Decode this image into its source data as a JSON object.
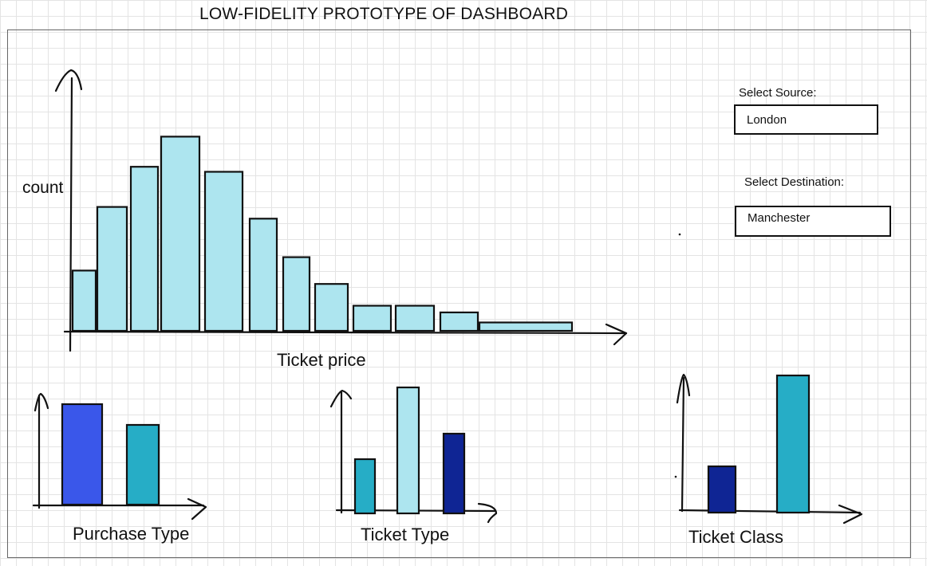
{
  "title": "LOW-FIDELITY PROTOTYPE OF DASHBOARD",
  "controls": {
    "source": {
      "label": "Select Source:",
      "value": "London"
    },
    "destination": {
      "label": "Select Destination:",
      "value": "Manchester"
    }
  },
  "colors": {
    "histogram_fill": "#ade5ef",
    "royal_blue": "#3a57ea",
    "teal": "#26adc6",
    "light_cyan": "#ade5ef",
    "navy": "#0f2594",
    "stroke": "#111111"
  },
  "chart_data": [
    {
      "type": "bar",
      "xlabel": "Ticket price",
      "ylabel": "count",
      "values": [
        3.6,
        7.4,
        9.8,
        11.6,
        9.5,
        6.7,
        4.4,
        2.8,
        1.5,
        1.5,
        1.1,
        0.5
      ]
    },
    {
      "type": "bar",
      "xlabel": "Purchase Type",
      "values": [
        6.3,
        5.0
      ],
      "colors": [
        "#3a57ea",
        "#26adc6"
      ]
    },
    {
      "type": "bar",
      "xlabel": "Ticket Type",
      "values": [
        3.4,
        7.9,
        5.0
      ],
      "colors": [
        "#26adc6",
        "#ade5ef",
        "#0f2594"
      ]
    },
    {
      "type": "bar",
      "xlabel": "Ticket Class",
      "values": [
        2.9,
        8.6
      ],
      "colors": [
        "#0f2594",
        "#26adc6"
      ]
    }
  ]
}
